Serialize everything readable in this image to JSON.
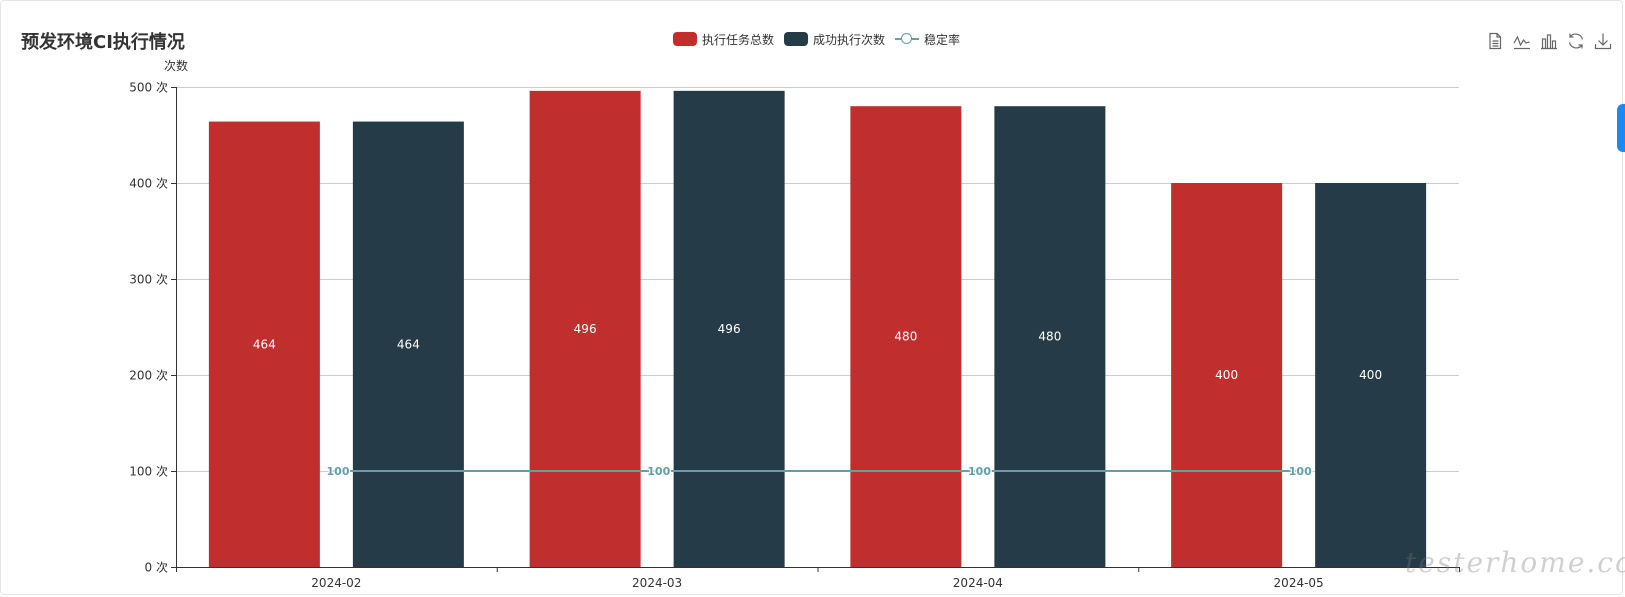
{
  "header": {
    "title": "预发环境CI执行情况"
  },
  "toolbox": [
    {
      "icon": "data-view-icon"
    },
    {
      "icon": "line-chart-icon"
    },
    {
      "icon": "bar-chart-icon"
    },
    {
      "icon": "restore-icon"
    },
    {
      "icon": "download-icon"
    }
  ],
  "watermark": "testerhome.com",
  "colors": {
    "total": "#c12e2e",
    "success": "#253b48",
    "stability": "#61a0a8",
    "axis": "#333333",
    "grid": "#cccccc"
  },
  "chart_data": {
    "type": "bar",
    "title": "预发环境CI执行情况",
    "categories": [
      "2024-02",
      "2024-03",
      "2024-04",
      "2024-05"
    ],
    "series": [
      {
        "name": "执行任务总数",
        "type": "bar",
        "values": [
          464,
          496,
          480,
          400
        ],
        "color": "#c12e2e"
      },
      {
        "name": "成功执行次数",
        "type": "bar",
        "values": [
          464,
          496,
          480,
          400
        ],
        "color": "#253b48"
      },
      {
        "name": "稳定率",
        "type": "line",
        "values": [
          100,
          100,
          100,
          100
        ],
        "color": "#61a0a8"
      }
    ],
    "ylabel": "次数",
    "y_tick_suffix": " 次",
    "ylim": [
      0,
      500
    ],
    "y_ticks": [
      0,
      100,
      200,
      300,
      400,
      500
    ],
    "legend_position": "top-center",
    "grid": true
  }
}
